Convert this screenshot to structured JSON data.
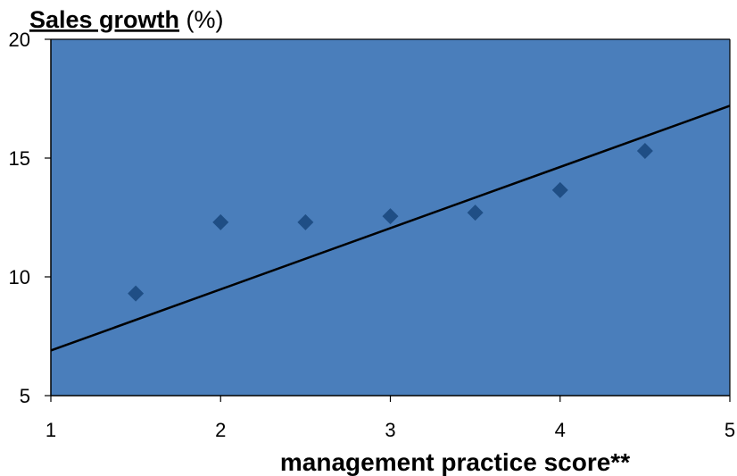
{
  "chart_data": {
    "type": "scatter",
    "title_bold": "Sales growth",
    "title_rest": " (%)",
    "xlabel": "management practice score**",
    "ylabel": "",
    "xlim": [
      1,
      5
    ],
    "ylim": [
      5,
      20
    ],
    "xticks": [
      1,
      2,
      3,
      4,
      5
    ],
    "yticks": [
      5,
      10,
      15,
      20
    ],
    "grid": false,
    "series": [
      {
        "marker": "diamond",
        "x": [
          1.5,
          2.0,
          2.5,
          3.0,
          3.5,
          4.0,
          4.5
        ],
        "y": [
          9.3,
          12.3,
          12.3,
          12.55,
          12.7,
          13.65,
          15.3
        ]
      }
    ],
    "trendline": {
      "x": [
        1,
        5
      ],
      "y": [
        6.9,
        17.2
      ]
    },
    "colors": {
      "plot_background": "#4A7EBB",
      "marker": "#1F4E85",
      "trendline": "#000000",
      "axis": "#000000"
    }
  }
}
